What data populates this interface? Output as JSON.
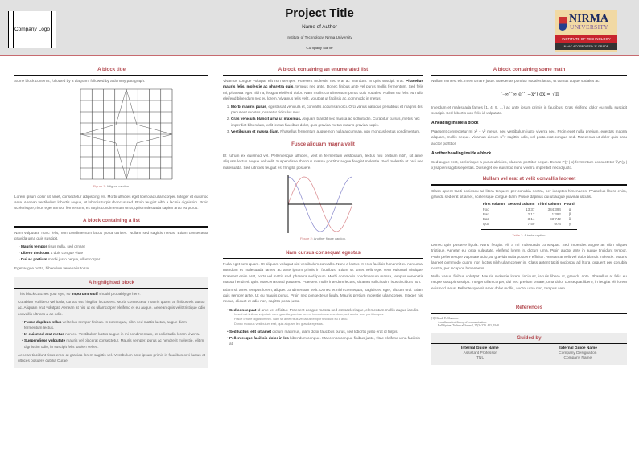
{
  "header": {
    "logo": "Company Logo",
    "title": "Project Title",
    "author": "Name of Author",
    "institute": "Institute of Technology, Nirma University",
    "company": "Company Name",
    "nirma_logo": {
      "name": "NIRMA",
      "sub": "UNIVERSITY",
      "band1": "INSTITUTE OF TECHNOLOGY",
      "band2": "NAAC ACCREDITED 'A' GRADE"
    }
  },
  "col1": {
    "block1": {
      "title": "A block title",
      "intro": "Some block contents, followed by a diagram, followed by a dummy paragraph.",
      "fig_label": "Figure 1:",
      "fig_caption": "A figure caption.",
      "para": "Lorem ipsum dolor sit amet, consectetur adipiscing elit. Morbi ultricies eget libero ac ullamcorper. Integer et euismod ante. Aenean vestibulum lobortis augue, ut lobortis turpis rhoncus sed. Proin feugiat nibh a lacinia dignissim. Proin scelerisque, risus eget tempor fermentum, ex turpis condimentum urna, quis malesuada sapien arcu eu purus."
    },
    "block2": {
      "title": "A block containing a list",
      "intro": "Nam vulputate nunc felis, non condimentum lacus porta ultrices. Nullam sed sagittis metus. Etiam consectetur gravida urna quis suscipit.",
      "items": [
        {
          "b": "Mauris tempor",
          "t": " risus nulla, sed ornare"
        },
        {
          "b": "Libero tincidunt",
          "t": " a duis congue vitae"
        },
        {
          "b": "Dui ac pretium",
          "t": " morbi justo neque, ullamcorper"
        }
      ],
      "outro": "Eget augue porta, bibendum venenatis tortor."
    },
    "block3": {
      "title": "A highlighted block",
      "intro_a": "This block catches your eye, so ",
      "intro_b": "important stuff",
      "intro_c": " should probably go here.",
      "para": "Curabitur eu libero vehicula, cursus est fringilla, luctus est. Morbi consectetur mauris quam, at finibus elit auctor ac. Aliquam erat volutpat. Aenean at nisl ut ex ullamcorper eleifend et eu augue. Aenean quis velit tristique odio convallis ultrices a ac odio.",
      "items": [
        {
          "b": "Fusce dapibus tellus",
          "t": " vel tellus semper finibus. In consequat, nibh sed mattis luctus, augue diam fermentum lectus."
        },
        {
          "b": "In euismod erat metus",
          "t": " non ex. Vestibulum luctus augue in mi condimentum, at sollicitudin lorem viverra."
        },
        {
          "b": "Suspendisse vulputate",
          "t": " mauris vel placerat consectetur. Mauris semper, purus ac hendrerit molestie, elit mi dignissim odio, in suscipit felis sapien vel ex."
        }
      ],
      "outro": "Aenean tincidunt risus eros, at gravida lorem sagittis vel. Vestibulum ante ipsum primis in faucibus orci luctus et ultrices posuere cubilia Curae."
    }
  },
  "col2": {
    "block1": {
      "title": "A block containing an enumerated list",
      "para_a": "Vivamus congue volutpat elit non semper. Praesent molestie nec erat ac interdum. In quis suscipit erat. ",
      "para_b": "Phasellus mauris felis, molestie ac pharetra quis",
      "para_c": ", tempus nec ante. Donec finibus ante vel purus mollis fermentum. Sed felis mi, pharetra eget nibh a, feugiat eleifend dolor. Nam mollis condimentum purus quis sodales. Nullam eu felis eu nulla eleifend bibendum nec eu lorem. Vivamus felis velit, volutpat ut facilisis ac, commodo in metus.",
      "items": [
        {
          "b": "Morbi mauris purus",
          "t": ", egestas at vehicula et, convallis accumsan orci. Orci varius natoque penatibus et magnis dis parturient montes, nascetur ridiculus mus."
        },
        {
          "b": "Cras vehicula blandit urna ut maximus.",
          "t": " Aliquam blandit nec massa ac sollicitudin. Curabitur cursus, metus nec imperdiet bibendum, velit lectus faucibus dolor, quis gravida metus mauris gravida turpis."
        },
        {
          "b": "Vestibulum et massa diam.",
          "t": " Phasellus fermentum augue non nulla accumsan, non rhoncus lectus condimentum."
        }
      ]
    },
    "block2": {
      "title": "Fusce aliquam magna velit",
      "para": "Et rutrum ex euismod vel. Pellentesque ultricies, velit in fermentum vestibulum, lectus nisi pretium nibh, sit amet aliquam lectus augue vel velit. Suspendisse rhoncus massa porttitor augue feugiat molestie. Sed molestie ut orci nec malesuada. Sed ultricies feugiat est fringilla posuere.",
      "fig_label": "Figure 2:",
      "fig_caption": "Another figure caption.",
      "colors": {
        "sin": "#d9888c",
        "cos": "#8888cc"
      }
    },
    "block3": {
      "title": "Nam cursus consequat egestas",
      "para1": "Nulla eget sem quam. Ut aliquam volutpat nisi vestibulum convallis. Nunc a lectus et eros facilisis hendrerit eu non urna. Interdum et malesuada fames ac ante ipsum primis in faucibus. Etiam sit amet velit eget sem euismod tristique. Praesent enim erat, porta vel mattis sed, pharetra sed ipsum. Morbi commodo condimentum massa, tempus venenatis massa hendrerit quis. Maecenas sed porta est. Praesent mollis interdum lectus, sit amet sollicitudin risus tincidunt non.",
      "para2": "Etiam sit amet tempus lorem, aliquet condimentum velit. Donec et nibh consequat, sagittis ex eget, dictum orci. Etiam quis semper ante. Ut eu mauris purus. Proin nec consectetur ligula. Mauris pretium molestie ullamcorper. Integer nisi neque, aliquet et odio non, sagittis porta justo.",
      "item1": {
        "b": "Sed consequat",
        "t": " id ante vel efficitur. Praesent congue massa sed est scelerisque, elementum mollis augue iaculis.",
        "sub": [
          "In sed est finibus, vulputate nunc gravida, pulvinar lorem. In maximus nunc dolor, sed auctor eros porttitor quis.",
          "Fusce ornare dignissim nisl. Nam sit amet risus vel lacus tempor tincidunt eu a arcu.",
          "Donec rhoncus vestibulum erat, quis aliquam leo gravida egestas."
        ]
      },
      "item2": {
        "b": "Sed luctus, elit sit amet",
        "t": " dictum maximus, diam dolor faucibus purus, sed lobortis justo erat id turpis."
      },
      "item3": {
        "b": "Pellentesque facilisis dolor in leo",
        "t": " bibendum congue. Maecenas congue finibus justo, vitae eleifend urna facilisis at."
      }
    }
  },
  "col3": {
    "block1": {
      "title": "A block containing some math",
      "para1": "Nullam non est elit. In eu ornare justo. Maecenas porttitor sodales lacus, ut cursus augue sodales ac.",
      "equation": "∫₋∞^∞ e^(−x²) dx = √π",
      "para2": "Interdum et malesuada fames {1, 4, 9, …} ac ante ipsum primis in faucibus. Cras eleifend dolor eu nulla suscipit suscipit. Sed lobortis non felis id vulputate.",
      "h1": "A heading inside a block",
      "para3": "Praesent consectetur mi x² + y² metus, nec vestibulum justo viverra nec. Proin eget nulla pretium, egestas magna aliquam, mollis neque. Vivamus dictum uᵀv sagittis odio, vel porta erat congue sed. Maecenas ut dolor quis arcu auctor porttitor.",
      "h2": "Another heading inside a block",
      "para4": "Sed augue erat, scelerisque a purus ultricies, placerat porttitor neque. Donec P(y | x) fermentum consectetur ∇ₓP(y | x) sapien sagittis egestas. Duis eget leo euismod nunc viverra imperdiet nec id justo."
    },
    "block2": {
      "title": "Nullam vel erat at velit convallis laoreet",
      "para": "Class aptent taciti sociosqu ad litora torquent per conubia nostra, per inceptos himenaeos. Phasellus libero enim, gravida sed erat sit amet, scelerisque congue diam. Fusce dapibus dui ut augue pulvinar iaculis.",
      "table": {
        "headers": [
          "First column",
          "Second column",
          "Third column",
          "Fourth"
        ],
        "rows": [
          [
            "Foo",
            "13.37",
            "384,394",
            "α"
          ],
          [
            "Bar",
            "2.17",
            "1,392",
            "β"
          ],
          [
            "Baz",
            "3.14",
            "83,742",
            "δ"
          ],
          [
            "Qux",
            "7.59",
            "974",
            "γ"
          ]
        ]
      },
      "tab_label": "Table 1:",
      "tab_caption": "A table caption.",
      "para2": "Donec quis posuere ligula. Nunc feugiat elit a mi malesuada consequat. Sed imperdiet augue ac nibh aliquet tristique. Aenean eu tortor vulputate, eleifend lorem in, dictum urna. Proin auctor ante in augue tincidunt tempor. Proin pellentesque vulputate odio, ac gravida nulla posuere efficitur. Aenean at velit vel dolor blandit molestie. Mauris laoreet commodo quam, non luctus nibh ullamcorper in. Class aptent taciti sociosqu ad litora torquent per conubia nostra, per inceptos himenaeos.",
      "para3": "Nulla varius finibus volutpat. Mauris molestie lorem tincidunt, iaculis libero at, gravida ante. Phasellus at felis eu neque suscipit suscipit. Integer ullamcorper, dui nec pretium ornare, urna dolor consequat libero, in feugiat elit lorem euismod lacus. Pellentesque sit amet dolor mollis, auctor urna non, tempus sem."
    },
    "references": {
      "title": "References",
      "item": [
        "[1]  Claude E. Shannon.",
        "A mathematical theory of communication.",
        "Bell System Technical Journal, 27(3):379–423, 1948."
      ]
    },
    "guided": {
      "title": "Guided by",
      "internal": {
        "name": "Internal Guide Name",
        "role": "Assistant Professor",
        "org": "ITNU"
      },
      "external": {
        "name": "External Guide Name",
        "role": "Company Designation",
        "org": "Company Name"
      }
    }
  },
  "colors": {
    "accent": "#b34a50",
    "header_bg": "#e1e1e1",
    "highlight_bg": "#efefef"
  }
}
